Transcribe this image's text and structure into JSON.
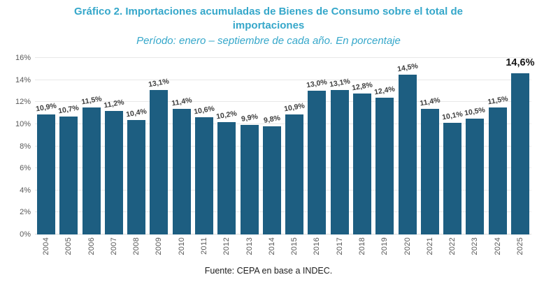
{
  "header": {
    "title": "Gráfico 2. Importaciones acumuladas de Bienes de Consumo sobre el total de importaciones",
    "subtitle": "Período: enero – septiembre de cada año. En porcentaje"
  },
  "colors": {
    "accent_title": "#35a7ca",
    "bar": "#1d5e81",
    "axis_text": "#595959",
    "data_label": "#3d3d3d",
    "gridline": "#e8e8e8"
  },
  "chart_data": {
    "type": "bar",
    "title": "Gráfico 2. Importaciones acumuladas de Bienes de Consumo sobre el total de importaciones",
    "subtitle": "Período: enero – septiembre de cada año. En porcentaje",
    "categories": [
      "2004",
      "2005",
      "2006",
      "2007",
      "2008",
      "2009",
      "2010",
      "2011",
      "2012",
      "2013",
      "2014",
      "2015",
      "2016",
      "2017",
      "2018",
      "2019",
      "2020",
      "2021",
      "2022",
      "2023",
      "2024",
      "2025"
    ],
    "values": [
      10.9,
      10.7,
      11.5,
      11.2,
      10.4,
      13.1,
      11.4,
      10.6,
      10.2,
      9.9,
      9.8,
      10.9,
      13.0,
      13.1,
      12.8,
      12.4,
      14.5,
      11.4,
      10.1,
      10.5,
      11.5,
      14.6
    ],
    "value_labels": [
      "10,9%",
      "10,7%",
      "11,5%",
      "11,2%",
      "10,4%",
      "13,1%",
      "11,4%",
      "10,6%",
      "10,2%",
      "9,9%",
      "9,8%",
      "10,9%",
      "13,0%",
      "13,1%",
      "12,8%",
      "12,4%",
      "14,5%",
      "11,4%",
      "10,1%",
      "10,5%",
      "11,5%",
      "14,6%"
    ],
    "xlabel": "",
    "ylabel": "",
    "ylim": [
      0,
      16
    ],
    "yticks": [
      0,
      2,
      4,
      6,
      8,
      10,
      12,
      14,
      16
    ],
    "ytick_labels": [
      "0%",
      "2%",
      "4%",
      "6%",
      "8%",
      "10%",
      "12%",
      "14%",
      "16%"
    ],
    "grid": true,
    "legend": false,
    "highlight_last": true
  },
  "footer": {
    "source": "Fuente: CEPA en base a INDEC."
  }
}
